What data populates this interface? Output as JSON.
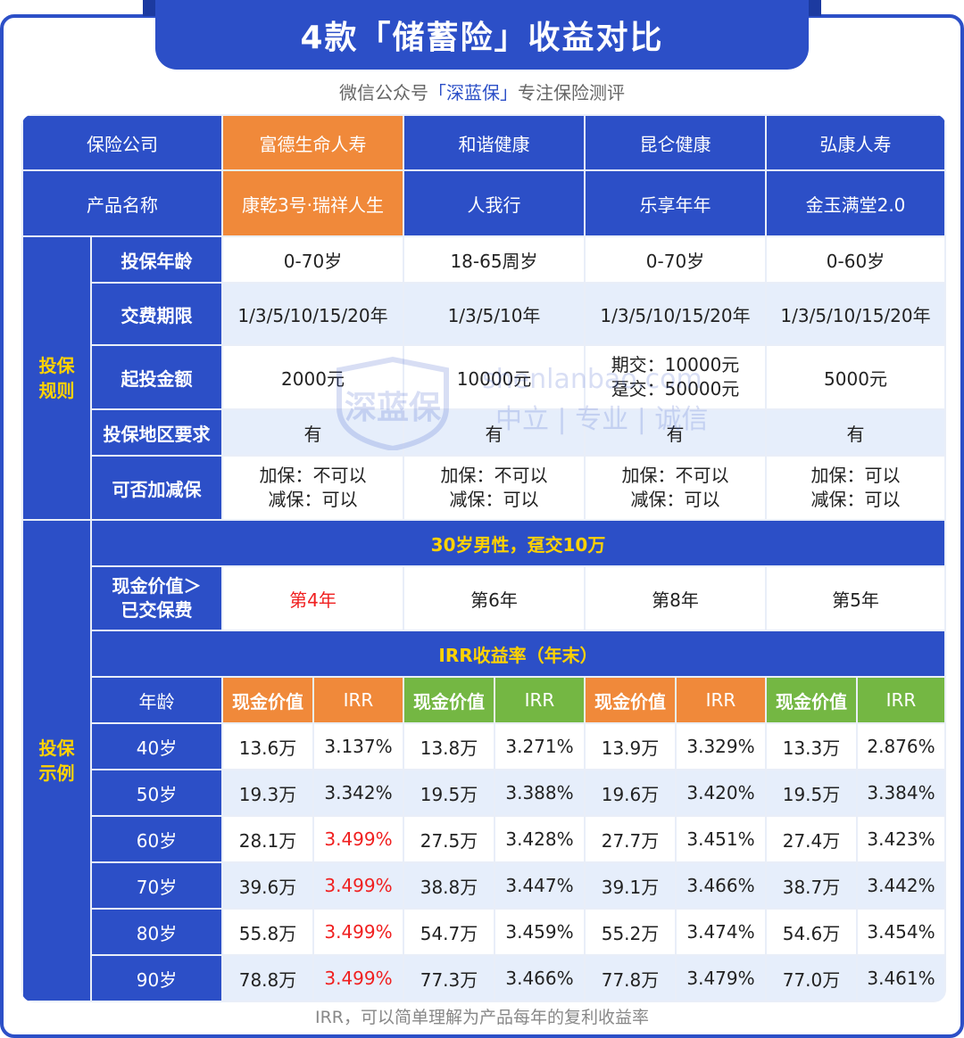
{
  "title": "4款「储蓄险」收益对比",
  "subtitle": {
    "prefix": "微信公众号",
    "brand": "「深蓝保」",
    "suffix": "专注保险测评"
  },
  "watermark": {
    "logo": "深蓝保",
    "site": "shenlanbao.com",
    "slogan": "中立 | 专业 | 诚信"
  },
  "header": {
    "company_label": "保险公司",
    "product_label": "产品名称",
    "companies": [
      "富德生命人寿",
      "和谐健康",
      "昆仑健康",
      "弘康人寿"
    ],
    "products": [
      "康乾3号·瑞祥人生",
      "人我行",
      "乐享年年",
      "金玉满堂2.0"
    ]
  },
  "rules": {
    "section_label": "投保规则",
    "rows": [
      {
        "label": "投保年龄",
        "values": [
          "0-70岁",
          "18-65周岁",
          "0-70岁",
          "0-60岁"
        ]
      },
      {
        "label": "交费期限",
        "values": [
          "1/3/5/10/15/20年",
          "1/3/5/10年",
          "1/3/5/10/15/20年",
          "1/3/5/10/15/20年"
        ]
      },
      {
        "label": "起投金额",
        "values": [
          "2000元",
          "10000元",
          "期交：10000元\n趸交：50000元",
          "5000元"
        ]
      },
      {
        "label": "投保地区要求",
        "values": [
          "有",
          "有",
          "有",
          "有"
        ]
      },
      {
        "label": "可否加减保",
        "values": [
          "加保：不可以\n减保：可以",
          "加保：不可以\n减保：可以",
          "加保：不可以\n减保：可以",
          "加保：可以\n减保：可以"
        ]
      }
    ]
  },
  "example": {
    "section_label": "投保示例",
    "scenario": "30岁男性，趸交10万",
    "breakeven_label": "现金价值＞\n已交保费",
    "breakeven": [
      "第4年",
      "第6年",
      "第8年",
      "第5年"
    ],
    "irr_band": "IRR收益率（年末）",
    "age_label": "年龄",
    "cv_label": "现金价值",
    "irr_label": "IRR",
    "rows": [
      {
        "age": "40岁",
        "cells": [
          "13.6万",
          "3.137%",
          "13.8万",
          "3.271%",
          "13.9万",
          "3.329%",
          "13.3万",
          "2.876%"
        ]
      },
      {
        "age": "50岁",
        "cells": [
          "19.3万",
          "3.342%",
          "19.5万",
          "3.388%",
          "19.6万",
          "3.420%",
          "19.5万",
          "3.384%"
        ]
      },
      {
        "age": "60岁",
        "cells": [
          "28.1万",
          "3.499%",
          "27.5万",
          "3.428%",
          "27.7万",
          "3.451%",
          "27.4万",
          "3.423%"
        ]
      },
      {
        "age": "70岁",
        "cells": [
          "39.6万",
          "3.499%",
          "38.8万",
          "3.447%",
          "39.1万",
          "3.466%",
          "38.7万",
          "3.442%"
        ]
      },
      {
        "age": "80岁",
        "cells": [
          "55.8万",
          "3.499%",
          "54.7万",
          "3.459%",
          "55.2万",
          "3.474%",
          "54.6万",
          "3.454%"
        ]
      },
      {
        "age": "90岁",
        "cells": [
          "78.8万",
          "3.499%",
          "77.3万",
          "3.466%",
          "77.8万",
          "3.479%",
          "77.0万",
          "3.461%"
        ]
      }
    ]
  },
  "footnote": "IRR，可以简单理解为产品每年的复利收益率",
  "colors": {
    "primary": "#2c4fc7",
    "orange": "#f0893a",
    "green": "#74b743",
    "yellow": "#ffd200",
    "red": "#f02020",
    "shade": "#e6eefb"
  }
}
